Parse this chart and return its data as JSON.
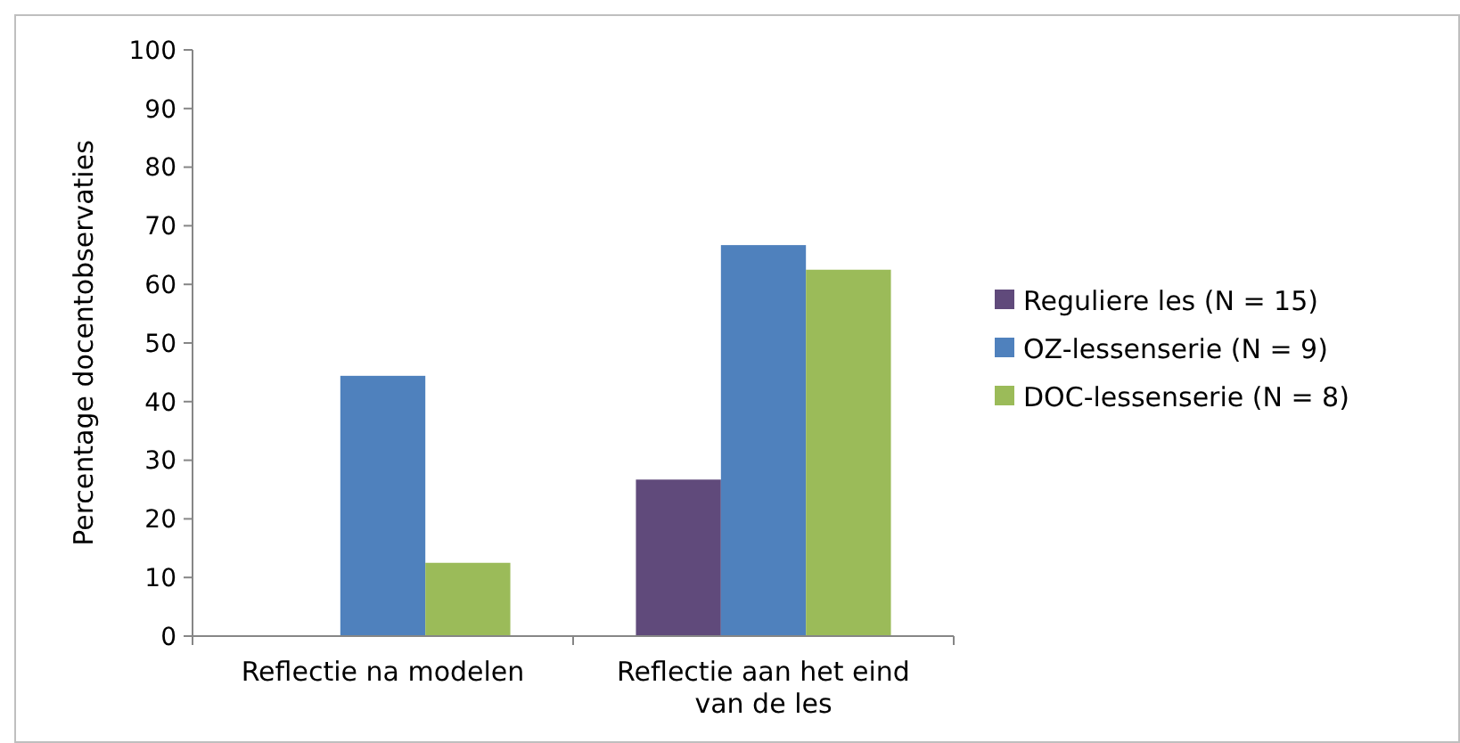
{
  "chart_data": {
    "type": "bar",
    "ylabel": "Percentage docentobservaties",
    "categories": [
      "Reflectie na modelen",
      "Reflectie aan het eind van de les"
    ],
    "series": [
      {
        "name": "Reguliere les (N = 15)",
        "color": "#604a7b",
        "values": [
          0,
          26.7
        ]
      },
      {
        "name": "OZ-lessenserie (N = 9)",
        "color": "#4f81bd",
        "values": [
          44.4,
          66.7
        ]
      },
      {
        "name": "DOC-lessenserie (N = 8)",
        "color": "#9bbb59",
        "values": [
          12.5,
          62.5
        ]
      }
    ],
    "ylim": [
      0,
      100
    ],
    "yticks": [
      0,
      10,
      20,
      30,
      40,
      50,
      60,
      70,
      80,
      90,
      100
    ],
    "grid": false,
    "legend": "right"
  }
}
